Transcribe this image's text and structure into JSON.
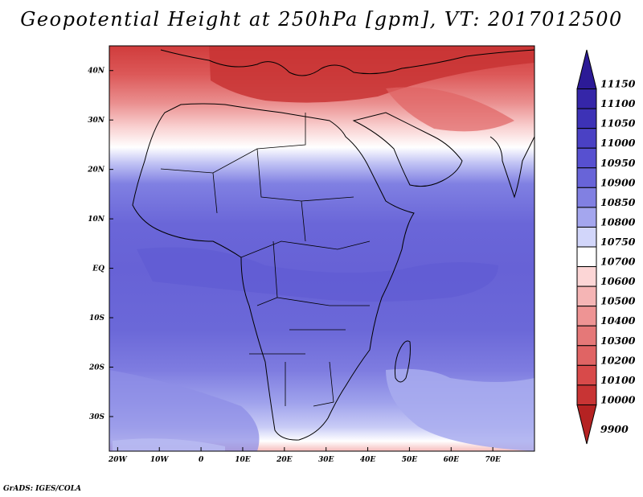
{
  "title": "Geopotential Height at 250hPa [gpm], VT: 2017012500",
  "credit": "GrADS: IGES/COLA",
  "map": {
    "lon_range": [
      -22,
      80
    ],
    "lat_range": [
      -37,
      45
    ],
    "lon_ticks": [
      {
        "value": -20,
        "label": "20W"
      },
      {
        "value": -10,
        "label": "10W"
      },
      {
        "value": 0,
        "label": "0"
      },
      {
        "value": 10,
        "label": "10E"
      },
      {
        "value": 20,
        "label": "20E"
      },
      {
        "value": 30,
        "label": "30E"
      },
      {
        "value": 40,
        "label": "40E"
      },
      {
        "value": 50,
        "label": "50E"
      },
      {
        "value": 60,
        "label": "60E"
      },
      {
        "value": 70,
        "label": "70E"
      }
    ],
    "lat_ticks": [
      {
        "value": 40,
        "label": "40N"
      },
      {
        "value": 30,
        "label": "30N"
      },
      {
        "value": 20,
        "label": "20N"
      },
      {
        "value": 10,
        "label": "10N"
      },
      {
        "value": 0,
        "label": "EQ"
      },
      {
        "value": -10,
        "label": "10S"
      },
      {
        "value": -20,
        "label": "20S"
      },
      {
        "value": -30,
        "label": "30S"
      }
    ]
  },
  "colorbar": {
    "levels": [
      {
        "label": "11150",
        "color": "#2c1a96"
      },
      {
        "label": "11100",
        "color": "#3526a8"
      },
      {
        "label": "11050",
        "color": "#3d32b6"
      },
      {
        "label": "11000",
        "color": "#4a41c4"
      },
      {
        "label": "10950",
        "color": "#5750d0"
      },
      {
        "label": "10900",
        "color": "#6864d8"
      },
      {
        "label": "10850",
        "color": "#8180e2"
      },
      {
        "label": "10800",
        "color": "#a4a6ee"
      },
      {
        "label": "10750",
        "color": "#d2d6fa"
      },
      {
        "label": "10700",
        "color": "#ffffff"
      },
      {
        "label": "10600",
        "color": "#fcd6d6"
      },
      {
        "label": "10500",
        "color": "#f5b5b5"
      },
      {
        "label": "10400",
        "color": "#ee9494"
      },
      {
        "label": "10300",
        "color": "#e57878"
      },
      {
        "label": "10200",
        "color": "#e06464"
      },
      {
        "label": "10100",
        "color": "#d84a4a"
      },
      {
        "label": "10000",
        "color": "#c83434"
      },
      {
        "label": "9900",
        "color": "#b52222"
      }
    ]
  }
}
